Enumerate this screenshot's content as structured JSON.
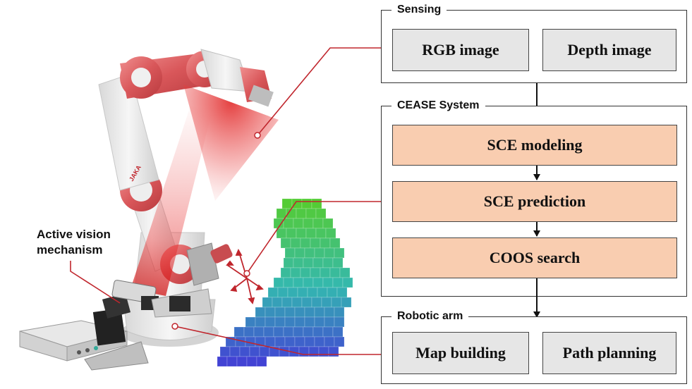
{
  "scene": {
    "active_vision_label_line1": "Active vision",
    "active_vision_label_line2": "mechanism",
    "robot_logo_text": "JAKA",
    "accent_red": "#c0262d",
    "arm_red": "#d9575a"
  },
  "sensing": {
    "legend": "Sensing",
    "rgb": "RGB image",
    "depth": "Depth image"
  },
  "cease": {
    "legend": "CEASE System",
    "steps": [
      "SCE modeling",
      "SCE prediction",
      "COOS search"
    ]
  },
  "robotic_arm": {
    "legend": "Robotic arm",
    "map": "Map building",
    "path": "Path planning"
  },
  "colors": {
    "grey_box": "#e6e6e6",
    "orange_box": "#f9cdb0",
    "voxel_top": "#55cc33",
    "voxel_mid": "#33b8b0",
    "voxel_bottom": "#4433d9"
  }
}
